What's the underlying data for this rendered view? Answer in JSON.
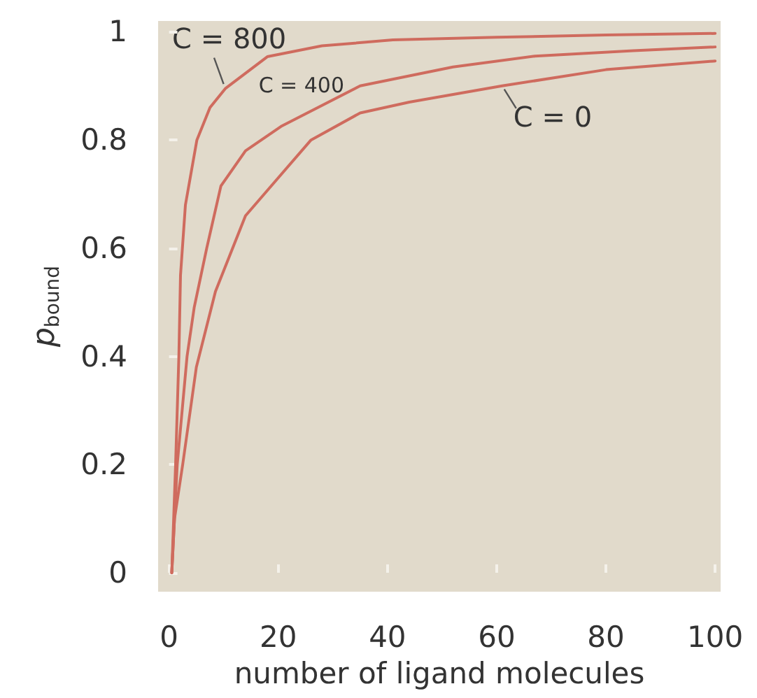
{
  "chart_data": {
    "type": "line",
    "xlabel": "number of ligand molecules",
    "ylabel": "p$_{bound}$",
    "series": [
      {
        "name": "C = 800",
        "color": "#cf6b5e",
        "x": [
          0.5,
          1.2,
          1.8,
          2.1,
          3,
          5.1,
          7.5,
          10.3,
          18,
          28,
          41,
          60,
          80,
          100
        ],
        "values": [
          0,
          0.2,
          0.4,
          0.55,
          0.68,
          0.8,
          0.86,
          0.895,
          0.954,
          0.974,
          0.985,
          0.99,
          0.994,
          0.997
        ]
      },
      {
        "name": "C = 400",
        "color": "#cf6b5e",
        "x": [
          0.5,
          1.5,
          3.3,
          4.6,
          6.9,
          9.5,
          14,
          20.5,
          35,
          52,
          67,
          85,
          100
        ],
        "values": [
          0,
          0.2,
          0.4,
          0.49,
          0.6,
          0.715,
          0.78,
          0.825,
          0.9,
          0.935,
          0.955,
          0.965,
          0.972
        ]
      },
      {
        "name": "C = 0",
        "color": "#cf6b5e",
        "x": [
          0.5,
          1,
          2.5,
          5,
          8.5,
          14,
          20,
          26,
          35,
          44,
          61,
          80,
          100
        ],
        "values": [
          0,
          0.1,
          0.2,
          0.38,
          0.52,
          0.66,
          0.73,
          0.8,
          0.85,
          0.87,
          0.9,
          0.93,
          0.946
        ]
      }
    ],
    "xlim": [
      -2,
      101
    ],
    "xticks": [
      0,
      20,
      40,
      60,
      80,
      100
    ],
    "ylim": [
      -0.035,
      1.02
    ],
    "yticks": [
      0,
      0.2,
      0.4,
      0.6,
      0.8,
      1
    ],
    "marker": "none",
    "line_style": "solid",
    "grid": false
  }
}
